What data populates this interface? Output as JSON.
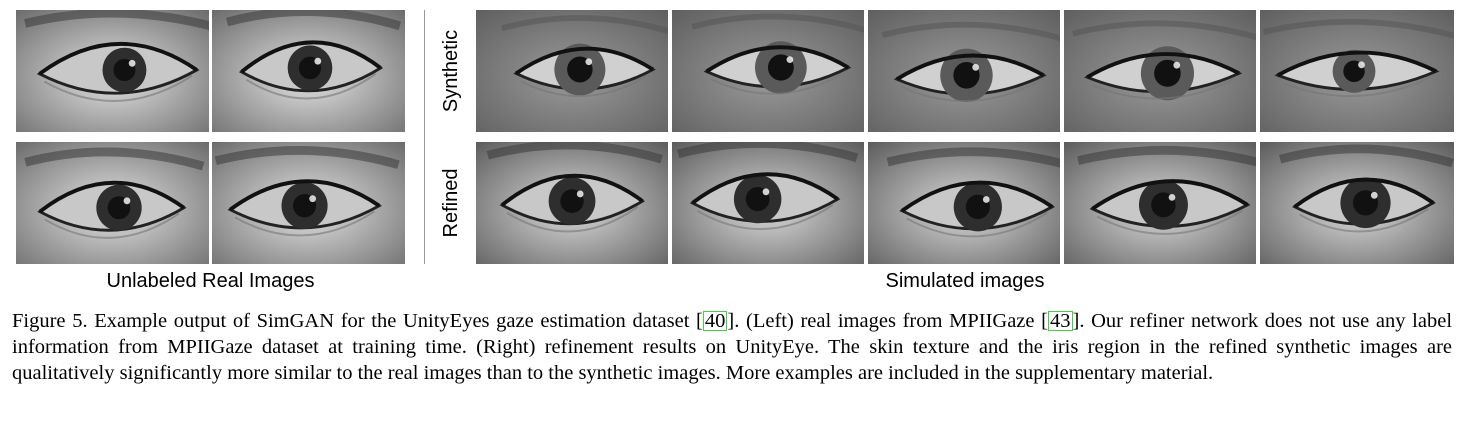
{
  "figure": {
    "left_group_label": "Unlabeled Real Images",
    "right_group_label": "Simulated images",
    "row_labels": {
      "synthetic": "Synthetic",
      "refined": "Refined"
    },
    "images": {
      "real": [
        {
          "name": "real-eye-1",
          "kind": "real"
        },
        {
          "name": "real-eye-2",
          "kind": "real"
        },
        {
          "name": "real-eye-3",
          "kind": "real"
        },
        {
          "name": "real-eye-4",
          "kind": "real"
        }
      ],
      "synthetic": [
        {
          "name": "synthetic-eye-1",
          "kind": "synthetic"
        },
        {
          "name": "synthetic-eye-2",
          "kind": "synthetic"
        },
        {
          "name": "synthetic-eye-3",
          "kind": "synthetic"
        },
        {
          "name": "synthetic-eye-4",
          "kind": "synthetic"
        },
        {
          "name": "synthetic-eye-5",
          "kind": "synthetic"
        }
      ],
      "refined": [
        {
          "name": "refined-eye-1",
          "kind": "refined"
        },
        {
          "name": "refined-eye-2",
          "kind": "refined"
        },
        {
          "name": "refined-eye-3",
          "kind": "refined"
        },
        {
          "name": "refined-eye-4",
          "kind": "refined"
        },
        {
          "name": "refined-eye-5",
          "kind": "refined"
        }
      ]
    }
  },
  "caption": {
    "part1": "Figure 5. Example output of SimGAN for the UnityEyes gaze estimation dataset [",
    "cite1": "40",
    "part2": "]. (Left) real images from MPIIGaze [",
    "cite2": "43",
    "part3": "]. Our refiner network does not use any label information from MPIIGaze dataset at training time. (Right) refinement results on UnityEye. The skin texture and the iris region in the refined synthetic images are qualitatively significantly more similar to the real images than to the synthetic images. More examples are included in the supplementary material."
  },
  "colors": {
    "citation_box": "#3fd13f",
    "divider": "#999999"
  }
}
